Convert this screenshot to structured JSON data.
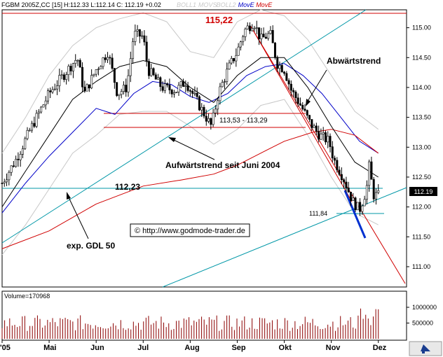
{
  "header": {
    "instrument": "FGBM 2005Z,CC [15]",
    "ohlc": "H:112.33 L:112.14 C: 112.19 +0.02",
    "indicator_labels": [
      {
        "text": "BOLL1",
        "color": "#c8c8c8"
      },
      {
        "text": "MOVS",
        "color": "#c8c8c8"
      },
      {
        "text": "BOLL2",
        "color": "#c8c8c8"
      },
      {
        "text": "MovE",
        "color": "#0000c8"
      },
      {
        "text": "MovE",
        "color": "#d00000"
      }
    ]
  },
  "chart_data": {
    "type": "candlestick",
    "x_labels": [
      {
        "text": "'05",
        "month": 4
      },
      {
        "text": "Mai",
        "month": 5
      },
      {
        "text": "Jun",
        "month": 6
      },
      {
        "text": "Jul",
        "month": 7
      },
      {
        "text": "Aug",
        "month": 8
      },
      {
        "text": "Sep",
        "month": 9
      },
      {
        "text": "Okt",
        "month": 10
      },
      {
        "text": "Nov",
        "month": 11
      },
      {
        "text": "Dez",
        "month": 12
      }
    ],
    "y_ticks": [
      {
        "value": 111.0,
        "label": "111.00"
      },
      {
        "value": 111.5,
        "label": "111.50"
      },
      {
        "value": 112.0,
        "label": "112.00"
      },
      {
        "value": 112.5,
        "label": "112.50"
      },
      {
        "value": 113.0,
        "label": "113.00"
      },
      {
        "value": 113.5,
        "label": "113.50"
      },
      {
        "value": 114.0,
        "label": "114.00"
      },
      {
        "value": 114.5,
        "label": "114.50"
      },
      {
        "value": 115.0,
        "label": "115.00"
      }
    ],
    "ylim": [
      110.66,
      115.3
    ],
    "xlim_months": [
      4.0,
      12.6
    ],
    "last_price": "112.19",
    "price_anchors": [
      [
        4.0,
        112.4
      ],
      [
        4.3,
        112.8
      ],
      [
        4.6,
        113.3
      ],
      [
        5.0,
        113.9
      ],
      [
        5.3,
        114.2
      ],
      [
        5.6,
        114.5
      ],
      [
        5.75,
        113.9
      ],
      [
        6.0,
        114.3
      ],
      [
        6.25,
        114.6
      ],
      [
        6.45,
        113.9
      ],
      [
        6.65,
        114.0
      ],
      [
        6.8,
        114.9
      ],
      [
        7.0,
        114.85
      ],
      [
        7.1,
        114.3
      ],
      [
        7.4,
        114.0
      ],
      [
        7.7,
        113.95
      ],
      [
        7.9,
        114.1
      ],
      [
        8.05,
        113.9
      ],
      [
        8.3,
        113.55
      ],
      [
        8.45,
        113.35
      ],
      [
        8.6,
        113.9
      ],
      [
        8.8,
        114.3
      ],
      [
        9.0,
        114.6
      ],
      [
        9.15,
        114.95
      ],
      [
        9.35,
        115.1
      ],
      [
        9.5,
        114.8
      ],
      [
        9.7,
        114.9
      ],
      [
        9.85,
        114.4
      ],
      [
        10.0,
        114.3
      ],
      [
        10.15,
        113.95
      ],
      [
        10.35,
        113.7
      ],
      [
        10.55,
        113.4
      ],
      [
        10.75,
        113.2
      ],
      [
        10.95,
        113.1
      ],
      [
        11.05,
        112.8
      ],
      [
        11.25,
        112.5
      ],
      [
        11.45,
        112.1
      ],
      [
        11.6,
        111.95
      ],
      [
        11.75,
        112.3
      ],
      [
        11.8,
        112.7
      ],
      [
        11.9,
        112.2
      ],
      [
        12.0,
        112.19
      ]
    ],
    "peak_label": "115,22",
    "lines": [
      {
        "name": "GDL 50",
        "color": "#0000c8",
        "points": [
          [
            4.0,
            111.9
          ],
          [
            4.5,
            112.4
          ],
          [
            5.0,
            112.85
          ],
          [
            5.5,
            113.25
          ],
          [
            6.0,
            113.65
          ],
          [
            6.4,
            113.55
          ],
          [
            6.8,
            113.9
          ],
          [
            7.2,
            114.1
          ],
          [
            7.6,
            114.05
          ],
          [
            8.0,
            113.85
          ],
          [
            8.4,
            113.75
          ],
          [
            8.8,
            113.9
          ],
          [
            9.2,
            114.2
          ],
          [
            9.6,
            114.35
          ],
          [
            10.0,
            114.4
          ],
          [
            10.4,
            114.2
          ],
          [
            10.8,
            113.9
          ],
          [
            11.2,
            113.5
          ],
          [
            11.6,
            113.1
          ],
          [
            12.0,
            112.9
          ]
        ]
      },
      {
        "name": "MovE red",
        "color": "#d00000",
        "points": [
          [
            4.0,
            111.3
          ],
          [
            5.0,
            111.6
          ],
          [
            6.0,
            112.05
          ],
          [
            7.0,
            112.35
          ],
          [
            7.8,
            112.45
          ],
          [
            8.5,
            112.55
          ],
          [
            9.0,
            112.7
          ],
          [
            9.5,
            112.9
          ],
          [
            10.0,
            113.1
          ],
          [
            10.6,
            113.25
          ],
          [
            11.0,
            113.3
          ],
          [
            11.5,
            113.2
          ],
          [
            12.0,
            112.9
          ]
        ]
      },
      {
        "name": "Bollinger upper",
        "color": "#c8c8c8",
        "points": [
          [
            4.0,
            112.9
          ],
          [
            4.5,
            113.5
          ],
          [
            5.0,
            114.2
          ],
          [
            5.5,
            114.7
          ],
          [
            6.0,
            115.0
          ],
          [
            6.5,
            115.15
          ],
          [
            7.0,
            115.25
          ],
          [
            7.5,
            115.1
          ],
          [
            8.0,
            114.6
          ],
          [
            8.5,
            114.5
          ],
          [
            9.0,
            115.1
          ],
          [
            9.5,
            115.3
          ],
          [
            10.0,
            115.2
          ],
          [
            10.5,
            114.8
          ],
          [
            11.0,
            114.2
          ],
          [
            11.5,
            113.6
          ],
          [
            12.0,
            113.3
          ]
        ]
      },
      {
        "name": "Bollinger lower",
        "color": "#c8c8c8",
        "points": [
          [
            4.0,
            111.2
          ],
          [
            4.5,
            111.7
          ],
          [
            5.0,
            112.3
          ],
          [
            5.5,
            112.9
          ],
          [
            6.0,
            113.2
          ],
          [
            6.5,
            113.55
          ],
          [
            7.0,
            113.6
          ],
          [
            7.5,
            113.6
          ],
          [
            8.0,
            113.35
          ],
          [
            8.5,
            113.05
          ],
          [
            9.0,
            113.3
          ],
          [
            9.5,
            113.7
          ],
          [
            10.0,
            113.8
          ],
          [
            10.5,
            113.2
          ],
          [
            11.0,
            112.5
          ],
          [
            11.5,
            111.9
          ],
          [
            12.0,
            111.7
          ]
        ]
      },
      {
        "name": "Bollinger mid",
        "color": "#000000",
        "points": [
          [
            4.0,
            112.0
          ],
          [
            4.5,
            112.6
          ],
          [
            5.0,
            113.2
          ],
          [
            5.5,
            113.8
          ],
          [
            6.0,
            114.1
          ],
          [
            6.5,
            114.35
          ],
          [
            7.0,
            114.45
          ],
          [
            7.5,
            114.35
          ],
          [
            8.0,
            114.0
          ],
          [
            8.5,
            113.75
          ],
          [
            9.0,
            114.2
          ],
          [
            9.5,
            114.5
          ],
          [
            10.0,
            114.5
          ],
          [
            10.5,
            114.0
          ],
          [
            11.0,
            113.35
          ],
          [
            11.5,
            112.75
          ],
          [
            12.0,
            112.5
          ]
        ]
      }
    ],
    "annotations": [
      {
        "text": "Abwärtstrend"
      },
      {
        "text": "113,53 - 113,29"
      },
      {
        "text": "Aufwärtstrend seit Juni 2004"
      },
      {
        "text": "112,23"
      },
      {
        "text": "111,84"
      },
      {
        "text": "exp. GDL 50"
      },
      {
        "text": "© http://www.godmode-trader.de"
      }
    ],
    "volume": {
      "label": "Volume=170968",
      "ticks": [
        {
          "value": 500000,
          "label": "500000"
        },
        {
          "value": 1000000,
          "label": "1000000"
        }
      ],
      "max": 1200000
    }
  }
}
